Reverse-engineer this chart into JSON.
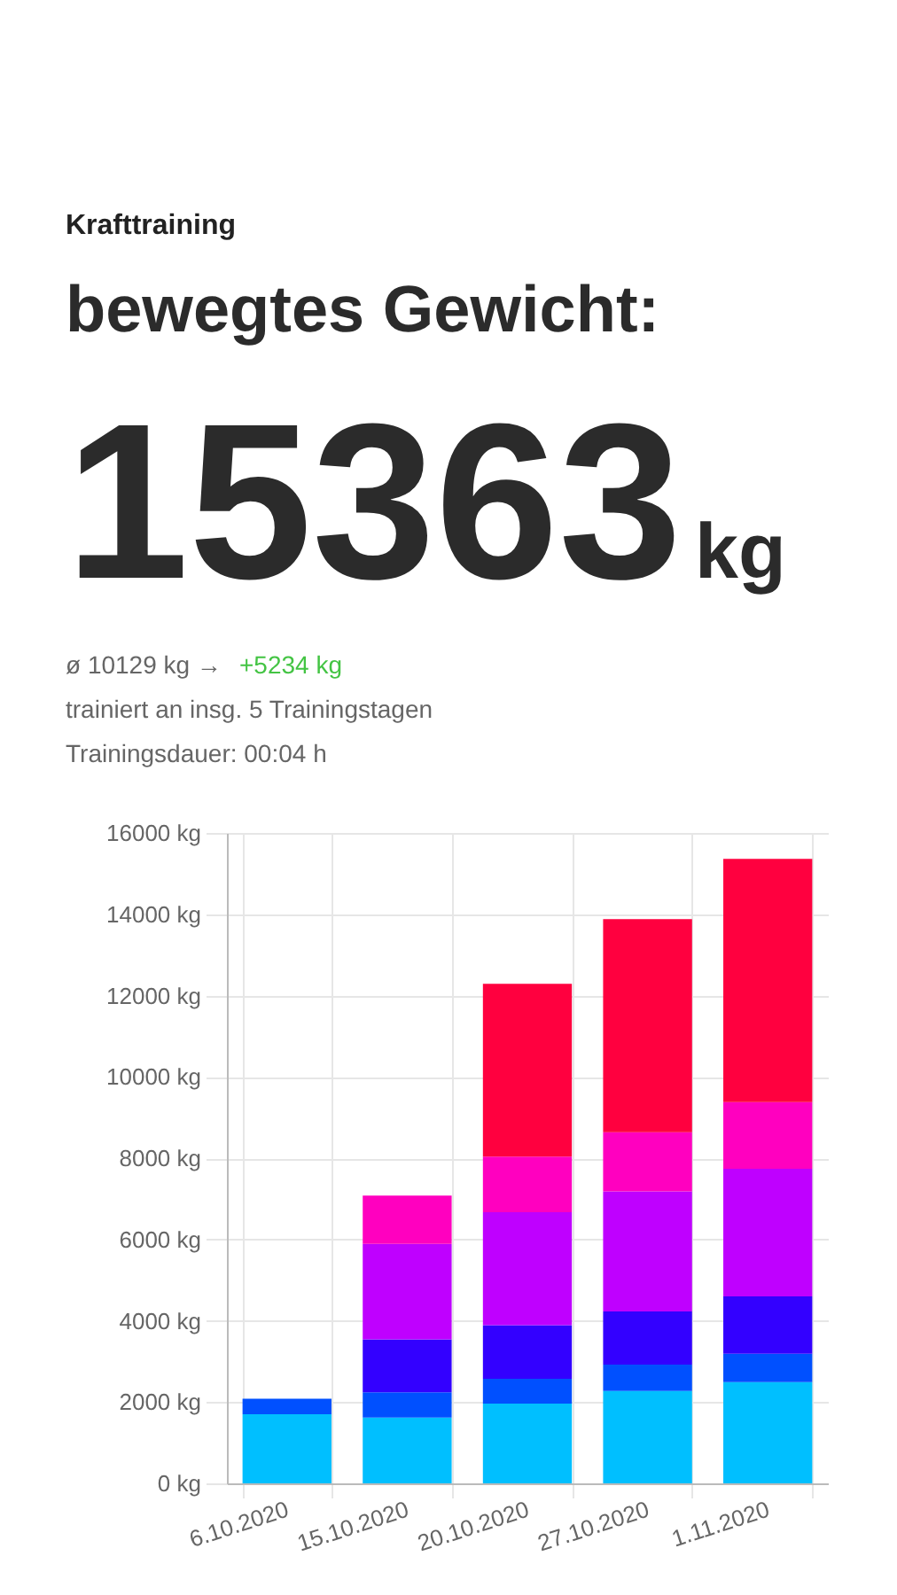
{
  "chart_data": {
    "type": "bar",
    "stacked": true,
    "subtitle": "Krafttraining",
    "title": "bewegtes Gewicht:",
    "annotations": [
      "15363",
      "kg",
      "ø 10129 kg →",
      "+5234 kg",
      "trainiert an insg. 5 Trainingstagen",
      "Trainingsdauer: 00:04 h"
    ],
    "categories": [
      "6.10.2020",
      "15.10.2020",
      "20.10.2020",
      "27.10.2020",
      "1.11.2020"
    ],
    "series": [
      {
        "color": "#00bfff",
        "values": [
          1700,
          1620,
          1960,
          2270,
          2490
        ]
      },
      {
        "color": "#0050ff",
        "values": [
          380,
          620,
          610,
          650,
          700
        ]
      },
      {
        "color": "#3300ff",
        "values": [
          null,
          1300,
          1320,
          1310,
          1410
        ]
      },
      {
        "color": "#bf00ff",
        "values": [
          null,
          2350,
          2780,
          2950,
          3140
        ]
      },
      {
        "color": "#ff00bf",
        "values": [
          null,
          1190,
          1370,
          1460,
          1640
        ]
      },
      {
        "color": "#ff003f",
        "values": [
          null,
          null,
          4250,
          5240,
          5980
        ]
      }
    ],
    "ylim": [
      0,
      16000
    ],
    "yticks": [
      {
        "value": 0,
        "label": "0 kg"
      },
      {
        "value": 2000,
        "label": "2000 kg"
      },
      {
        "value": 4000,
        "label": "4000 kg"
      },
      {
        "value": 6000,
        "label": "6000 kg"
      },
      {
        "value": 8000,
        "label": "8000 kg"
      },
      {
        "value": 10000,
        "label": "10000 kg"
      },
      {
        "value": 12000,
        "label": "12000 kg"
      },
      {
        "value": 14000,
        "label": "14000 kg"
      },
      {
        "value": 16000,
        "label": "16000 kg"
      }
    ],
    "grid": true
  }
}
